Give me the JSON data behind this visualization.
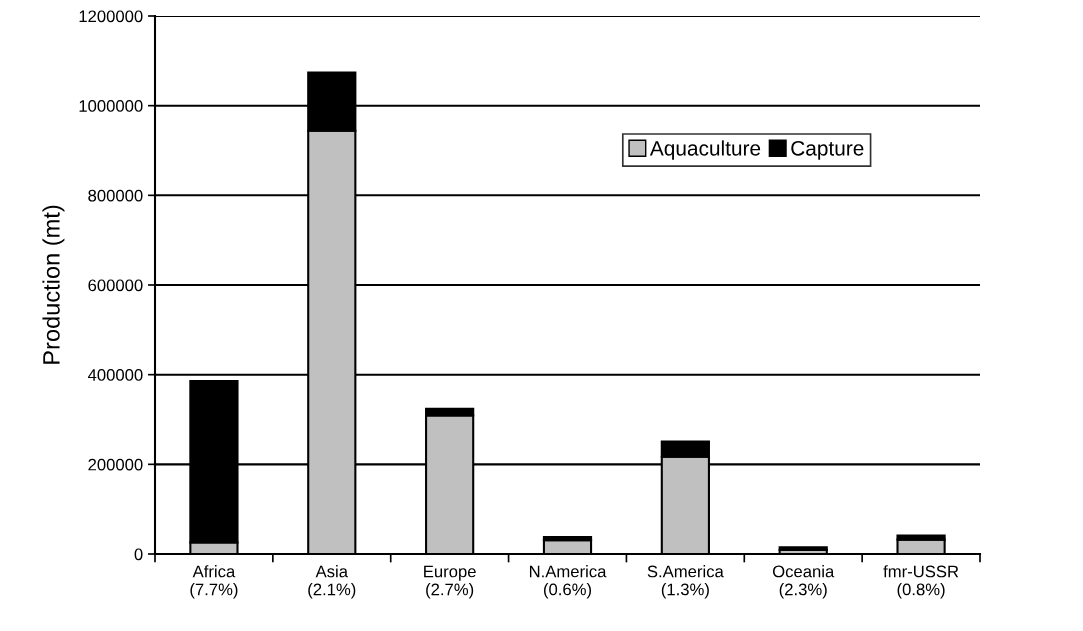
{
  "chart_data": {
    "type": "bar",
    "stacked": true,
    "ylabel": "Production (mt)",
    "categories": [
      "Africa\n(7.7%)",
      "Asia\n(2.1%)",
      "Europe\n(2.7%)",
      "N.America\n(0.6%)",
      "S.America\n(1.3%)",
      "Oceania\n(2.3%)",
      "fmr-USSR\n(0.8%)"
    ],
    "series": [
      {
        "name": "Aquaculture",
        "color": "#c0c0c0",
        "values": [
          26000,
          944000,
          309000,
          31000,
          217000,
          9000,
          32000
        ]
      },
      {
        "name": "Capture",
        "color": "#000000",
        "values": [
          360000,
          130000,
          15000,
          7000,
          34000,
          6000,
          9000
        ]
      }
    ],
    "ylim": [
      0,
      1200000
    ],
    "yticks": [
      0,
      200000,
      400000,
      600000,
      800000,
      1000000,
      1200000
    ],
    "grid": "y",
    "legend": "top right"
  }
}
